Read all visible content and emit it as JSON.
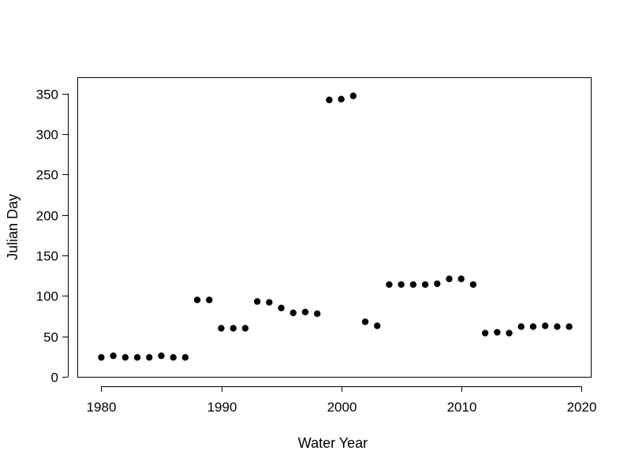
{
  "chart_data": {
    "type": "scatter",
    "xlabel": "Water Year",
    "ylabel": "Julian Day",
    "xlim": [
      1978,
      2020.8
    ],
    "ylim": [
      0,
      370
    ],
    "xticks": [
      1980,
      1990,
      2000,
      2010,
      2020
    ],
    "yticks": [
      0,
      50,
      100,
      150,
      200,
      250,
      300,
      350
    ],
    "grid": false,
    "point_color": "#000000",
    "x": [
      1980,
      1981,
      1982,
      1983,
      1984,
      1985,
      1986,
      1987,
      1988,
      1989,
      1990,
      1991,
      1992,
      1993,
      1994,
      1995,
      1996,
      1997,
      1998,
      1999,
      2000,
      2001,
      2002,
      2003,
      2004,
      2005,
      2006,
      2007,
      2008,
      2009,
      2010,
      2011,
      2012,
      2013,
      2014,
      2015,
      2016,
      2017,
      2018,
      2019
    ],
    "y": [
      24,
      26,
      24,
      24,
      24,
      26,
      24,
      24,
      95,
      95,
      60,
      60,
      60,
      93,
      92,
      85,
      79,
      80,
      78,
      342,
      343,
      347,
      68,
      63,
      114,
      114,
      114,
      114,
      115,
      121,
      121,
      114,
      54,
      55,
      54,
      62,
      62,
      63,
      62,
      62
    ]
  }
}
